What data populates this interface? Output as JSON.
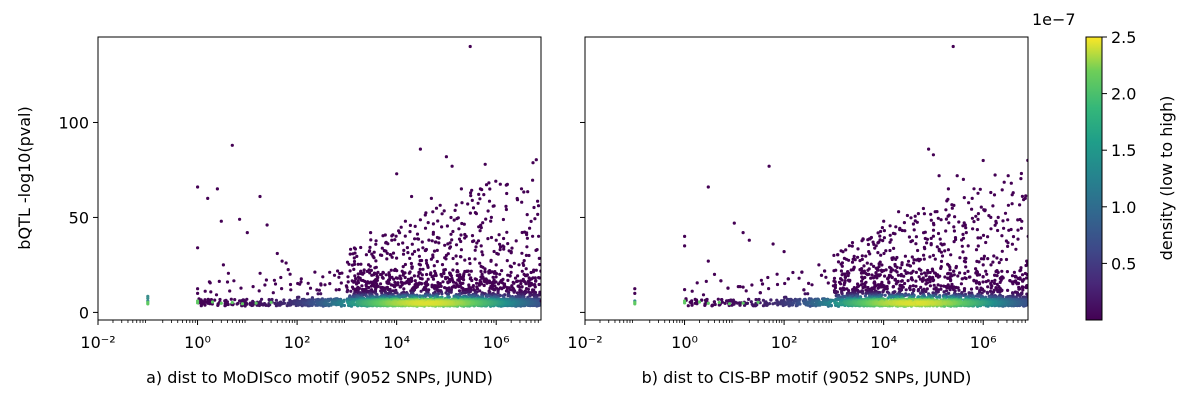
{
  "chart_data": {
    "type": "scatter",
    "y_label": "bQTL -log10(pval)",
    "colorbar": {
      "label": "density (low to high)",
      "exponent": "1e−7",
      "range": [
        0.0,
        2.5
      ],
      "ticks": [
        "0.5",
        "1.0",
        "1.5",
        "2.0",
        "2.5"
      ],
      "colors": [
        "#440154",
        "#3b528b",
        "#21918c",
        "#5ec962",
        "#fde725"
      ]
    },
    "x_scale": "log",
    "x_ticks": [
      "10⁻²",
      "10⁰",
      "10²",
      "10⁴",
      "10⁶"
    ],
    "y_ticks": [
      "0",
      "50",
      "100"
    ],
    "ylim": [
      -4,
      145
    ],
    "panels": [
      {
        "xlabel": "a) dist to MoDISco motif (9052 SNPs, JUND)",
        "points": [
          [
            0.1,
            8.5
          ],
          [
            0.1,
            7.5
          ],
          [
            0.1,
            6.0
          ],
          [
            1,
            66
          ],
          [
            1,
            34
          ],
          [
            1,
            12.5
          ],
          [
            1,
            10
          ],
          [
            1.6,
            60
          ],
          [
            2.5,
            65
          ],
          [
            3,
            48
          ],
          [
            5,
            88
          ],
          [
            3.3,
            25
          ],
          [
            4,
            16
          ],
          [
            7,
            49
          ],
          [
            10,
            42
          ],
          [
            18,
            61
          ],
          [
            25,
            46
          ],
          [
            40,
            31
          ],
          [
            50,
            27
          ],
          [
            60,
            26
          ],
          [
            120,
            16
          ],
          [
            300,
            15
          ],
          [
            700,
            12
          ],
          [
            1500,
            12
          ],
          [
            3000,
            42
          ],
          [
            5000,
            30
          ],
          [
            8000,
            38
          ],
          [
            10000,
            73
          ],
          [
            15000,
            48
          ],
          [
            20000,
            61
          ],
          [
            30000,
            86
          ],
          [
            50000,
            60
          ],
          [
            60000,
            37
          ],
          [
            80000,
            45
          ],
          [
            100000,
            82
          ],
          [
            130000,
            77
          ],
          [
            200000,
            65
          ],
          [
            250000,
            40
          ],
          [
            300000,
            140
          ],
          [
            350000,
            55
          ],
          [
            400000,
            52
          ],
          [
            600000,
            78
          ],
          [
            800000,
            50
          ],
          [
            1000000,
            38
          ],
          [
            2000000,
            32
          ],
          [
            4000000,
            23
          ],
          [
            8000000,
            6
          ],
          [
            5000,
            20
          ],
          [
            10000,
            22
          ],
          [
            30000,
            25
          ],
          [
            50000,
            28
          ],
          [
            100000,
            30
          ],
          [
            200000,
            33
          ],
          [
            500000,
            35
          ],
          [
            1000000,
            25
          ],
          [
            20000,
            18
          ],
          [
            2000,
            14
          ]
        ]
      },
      {
        "xlabel": "b) dist to CIS-BP motif (9052 SNPs, JUND)",
        "points": [
          [
            0.1,
            12.5
          ],
          [
            0.1,
            10
          ],
          [
            0.1,
            6
          ],
          [
            1,
            40
          ],
          [
            1,
            35
          ],
          [
            1,
            12
          ],
          [
            3,
            66
          ],
          [
            3,
            27
          ],
          [
            4,
            20
          ],
          [
            10,
            47
          ],
          [
            15,
            42
          ],
          [
            20,
            38
          ],
          [
            50,
            77
          ],
          [
            60,
            36
          ],
          [
            100,
            32
          ],
          [
            150,
            21
          ],
          [
            200,
            18
          ],
          [
            500,
            25
          ],
          [
            1000,
            30
          ],
          [
            3000,
            29
          ],
          [
            5000,
            32
          ],
          [
            8000,
            37
          ],
          [
            10000,
            48
          ],
          [
            20000,
            53
          ],
          [
            30000,
            51
          ],
          [
            50000,
            52
          ],
          [
            80000,
            86
          ],
          [
            100000,
            83
          ],
          [
            130000,
            72
          ],
          [
            200000,
            65
          ],
          [
            250000,
            140
          ],
          [
            300000,
            72
          ],
          [
            400000,
            70
          ],
          [
            600000,
            60
          ],
          [
            800000,
            52
          ],
          [
            1000000,
            80
          ],
          [
            2000000,
            50
          ],
          [
            4000000,
            63
          ],
          [
            7000000,
            60
          ],
          [
            8000000,
            40
          ],
          [
            9000000,
            10
          ],
          [
            5000,
            20
          ],
          [
            10000,
            22
          ],
          [
            30000,
            25
          ],
          [
            50000,
            28
          ],
          [
            100000,
            30
          ],
          [
            200000,
            33
          ],
          [
            500000,
            35
          ],
          [
            1000000,
            25
          ]
        ]
      }
    ]
  }
}
